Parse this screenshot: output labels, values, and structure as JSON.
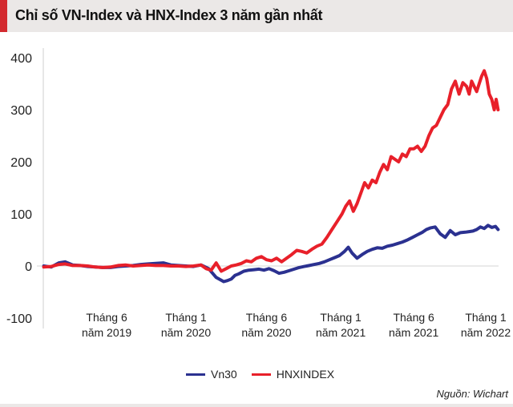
{
  "header": {
    "title": "Chỉ số VN-Index và HNX-Index 3 năm gần nhất",
    "accent_color": "#d32a2f",
    "background_color": "#ebe8e7"
  },
  "legend": [
    {
      "label": "Vn30",
      "color": "#2b3190"
    },
    {
      "label": "HNXINDEX",
      "color": "#e8202a"
    }
  ],
  "source": "Nguồn: Wichart",
  "chart_data": {
    "type": "line",
    "title": "Chỉ số VN-Index và HNX-Index 3 năm gần nhất",
    "xlabel": "",
    "ylabel": "",
    "ylim": [
      -100,
      400
    ],
    "yticks": [
      400,
      300,
      200,
      100,
      0,
      -100
    ],
    "grid": false,
    "zero_line": true,
    "legend_position": "bottom",
    "x_unit": "months since Jan 2019",
    "xlim": [
      0.7,
      36.8
    ],
    "xticks": [
      {
        "m": 5.7,
        "label_line1": "Tháng 6",
        "label_line2": "năm 2019"
      },
      {
        "m": 12,
        "label_line1": "Tháng 1",
        "label_line2": "năm 2020"
      },
      {
        "m": 18.4,
        "label_line1": "Tháng 6",
        "label_line2": "năm 2020"
      },
      {
        "m": 24.3,
        "label_line1": "Tháng 1",
        "label_line2": "năm 2021"
      },
      {
        "m": 30.1,
        "label_line1": "Tháng 6",
        "label_line2": "năm 2021"
      },
      {
        "m": 36,
        "label_line1": "Tháng 1",
        "label_line2": "năm 2022"
      }
    ],
    "series": [
      {
        "name": "Vn30",
        "color": "#2b3190",
        "x": [
          0.7,
          1.3,
          1.9,
          2.4,
          3.0,
          3.6,
          4.2,
          4.8,
          5.4,
          6.0,
          6.6,
          7.2,
          7.8,
          8.4,
          9.0,
          9.6,
          10.2,
          10.8,
          11.4,
          12.0,
          12.6,
          13.2,
          13.8,
          14.4,
          15.0,
          15.3,
          15.6,
          15.9,
          16.2,
          16.6,
          17.0,
          17.4,
          17.8,
          18.2,
          18.6,
          19.0,
          19.4,
          19.8,
          20.2,
          20.6,
          21.0,
          21.4,
          21.8,
          22.2,
          22.6,
          23.0,
          23.4,
          23.8,
          24.2,
          24.6,
          24.9,
          25.2,
          25.6,
          26.0,
          26.4,
          26.8,
          27.2,
          27.6,
          28.0,
          28.4,
          28.8,
          29.2,
          29.6,
          30.0,
          30.4,
          30.8,
          31.1,
          31.4,
          31.8,
          32.2,
          32.6,
          33.0,
          33.4,
          33.8,
          34.2,
          34.5,
          34.8,
          35.1,
          35.4,
          35.7,
          36.0,
          36.3,
          36.6,
          36.8
        ],
        "values": [
          0,
          -2,
          6,
          8,
          2,
          1,
          -1,
          -2,
          -3,
          -3,
          -1,
          0,
          1,
          3,
          4,
          5,
          6,
          2,
          1,
          0,
          -1,
          2,
          -5,
          -22,
          -30,
          -28,
          -25,
          -18,
          -15,
          -10,
          -8,
          -7,
          -6,
          -8,
          -5,
          -9,
          -14,
          -12,
          -9,
          -6,
          -3,
          -1,
          1,
          3,
          5,
          8,
          12,
          16,
          20,
          28,
          36,
          25,
          15,
          22,
          28,
          32,
          35,
          34,
          38,
          40,
          43,
          46,
          50,
          55,
          60,
          65,
          70,
          73,
          75,
          62,
          55,
          68,
          60,
          64,
          65,
          66,
          67,
          70,
          75,
          72,
          78,
          74,
          76,
          70
        ]
      },
      {
        "name": "HNXINDEX",
        "color": "#e8202a",
        "x": [
          0.7,
          1.3,
          1.9,
          2.4,
          3.0,
          3.6,
          4.2,
          4.8,
          5.4,
          6.0,
          6.6,
          7.2,
          7.8,
          8.4,
          9.0,
          9.6,
          10.2,
          10.8,
          11.4,
          12.0,
          12.6,
          13.2,
          13.6,
          14.0,
          14.4,
          14.8,
          15.2,
          15.6,
          16.0,
          16.4,
          16.8,
          17.2,
          17.6,
          18.0,
          18.4,
          18.8,
          19.2,
          19.6,
          20.0,
          20.4,
          20.8,
          21.2,
          21.6,
          22.0,
          22.4,
          22.8,
          23.2,
          23.6,
          24.0,
          24.4,
          24.7,
          25.0,
          25.3,
          25.6,
          25.9,
          26.2,
          26.5,
          26.8,
          27.1,
          27.4,
          27.7,
          28.0,
          28.3,
          28.6,
          28.9,
          29.2,
          29.5,
          29.8,
          30.1,
          30.4,
          30.7,
          31.0,
          31.3,
          31.6,
          31.9,
          32.2,
          32.5,
          32.8,
          33.1,
          33.4,
          33.7,
          34.0,
          34.3,
          34.5,
          34.7,
          34.9,
          35.1,
          35.3,
          35.5,
          35.7,
          35.9,
          36.1,
          36.3,
          36.5,
          36.65,
          36.8
        ],
        "values": [
          -2,
          -1,
          3,
          4,
          1,
          1,
          0,
          -2,
          -3,
          -2,
          1,
          2,
          0,
          1,
          2,
          1,
          1,
          0,
          0,
          -1,
          0,
          2,
          -5,
          -8,
          6,
          -10,
          -5,
          0,
          2,
          5,
          10,
          8,
          15,
          18,
          12,
          10,
          15,
          8,
          15,
          22,
          30,
          28,
          25,
          32,
          38,
          42,
          55,
          70,
          85,
          100,
          115,
          125,
          105,
          120,
          140,
          160,
          150,
          165,
          160,
          180,
          195,
          185,
          210,
          205,
          200,
          215,
          210,
          225,
          225,
          230,
          220,
          230,
          250,
          265,
          270,
          285,
          300,
          310,
          340,
          355,
          330,
          352,
          345,
          330,
          355,
          345,
          335,
          350,
          365,
          375,
          360,
          330,
          320,
          300,
          320,
          300
        ],
        "note": "final segment: peak ~375 near Jan 2022 then drop to ~300"
      }
    ]
  }
}
